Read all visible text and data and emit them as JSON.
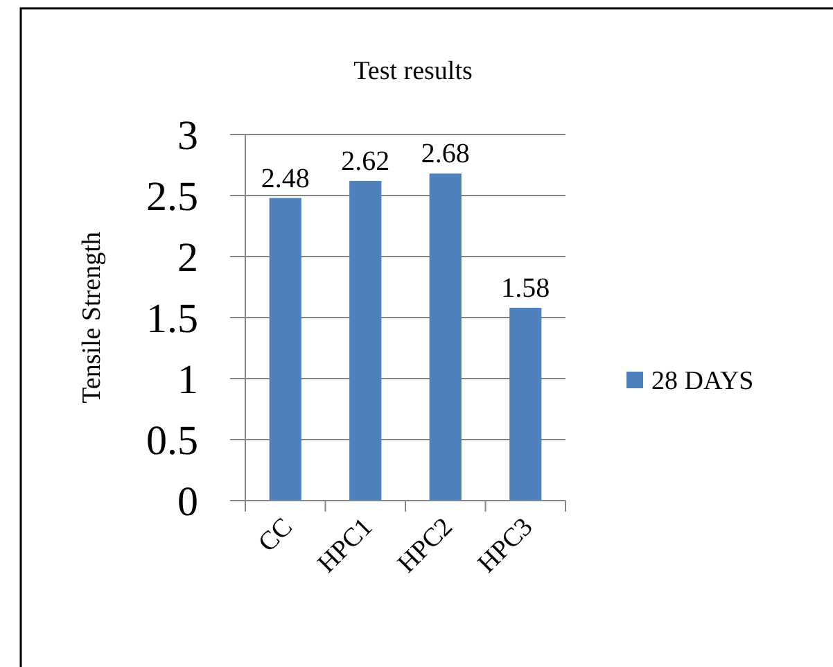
{
  "chart_data": {
    "type": "bar",
    "title": "Test results",
    "ylabel": "Tensile Strength",
    "categories": [
      "CC",
      "HPC1",
      "HPC2",
      "HPC3"
    ],
    "series": [
      {
        "name": "28 DAYS",
        "color": "#4f81bd",
        "values": [
          2.48,
          2.62,
          2.68,
          1.58
        ]
      }
    ],
    "ylim": [
      0,
      3
    ],
    "yticks": [
      0,
      0.5,
      1,
      1.5,
      2,
      2.5,
      3
    ],
    "grid": "y",
    "legend": "right",
    "data_labels": true
  }
}
